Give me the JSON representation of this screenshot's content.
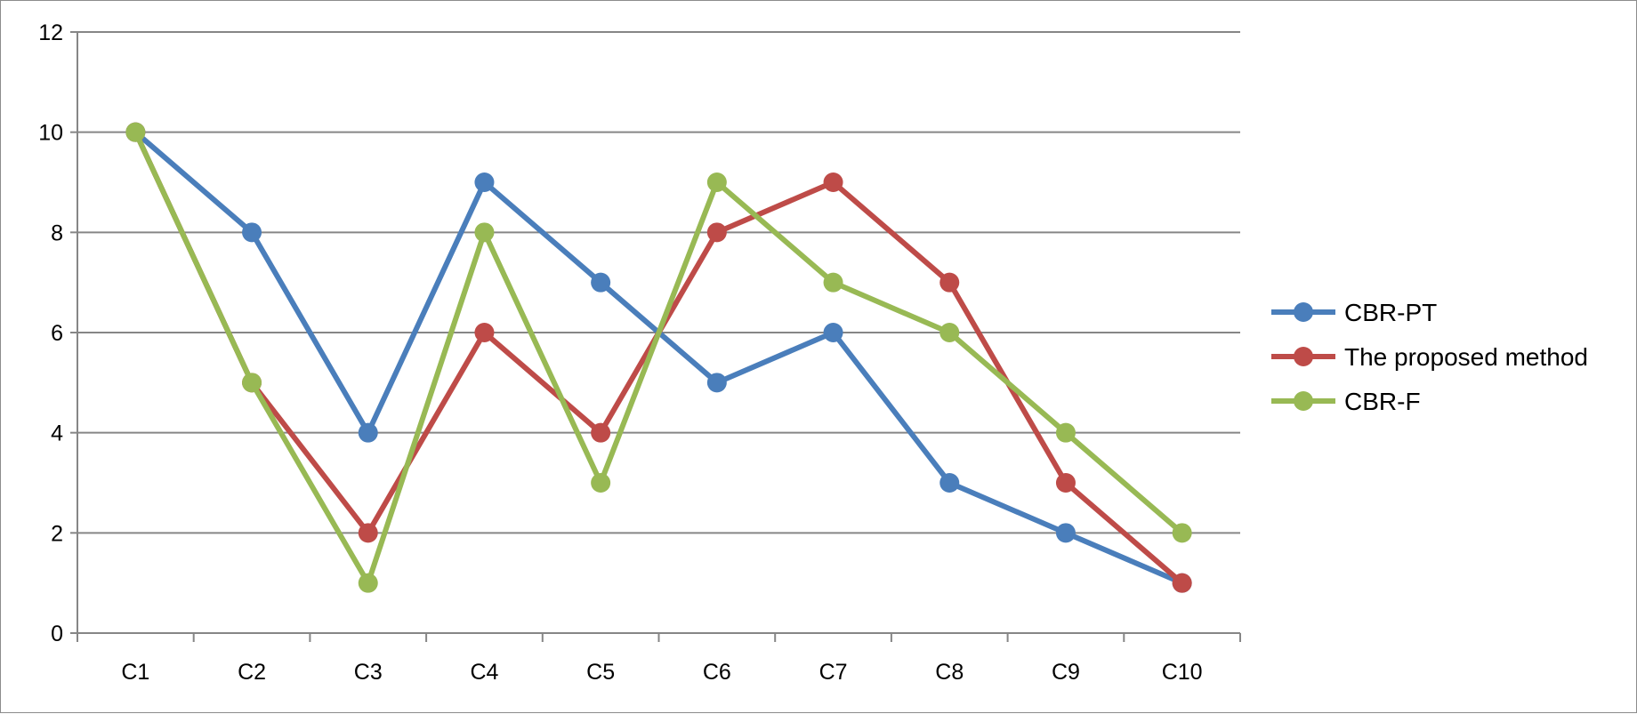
{
  "chart_data": {
    "type": "line",
    "categories": [
      "C1",
      "C2",
      "C3",
      "C4",
      "C5",
      "C6",
      "C7",
      "C8",
      "C9",
      "C10"
    ],
    "ylim": [
      0,
      12
    ],
    "yticks": [
      0,
      2,
      4,
      6,
      8,
      10,
      12
    ],
    "grid": true,
    "legend_position": "right",
    "series": [
      {
        "name": "CBR-PT",
        "color": "#4a7ebb",
        "values": [
          10,
          8,
          4,
          9,
          7,
          5,
          6,
          3,
          2,
          1
        ]
      },
      {
        "name": "The proposed method",
        "color": "#be4b48",
        "values": [
          10,
          5,
          2,
          6,
          4,
          8,
          9,
          7,
          3,
          1
        ]
      },
      {
        "name": "CBR-F",
        "color": "#98b954",
        "values": [
          10,
          5,
          1,
          8,
          3,
          9,
          7,
          6,
          4,
          2
        ]
      }
    ]
  }
}
